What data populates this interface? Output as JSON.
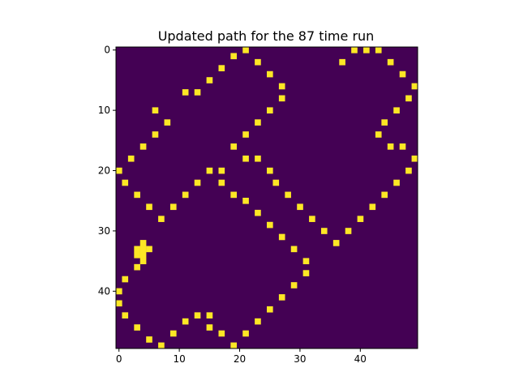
{
  "chart_data": {
    "type": "heatmap",
    "title": "Updated path for the 87 time run",
    "xlabel": "",
    "ylabel": "",
    "grid_size": 50,
    "colormap": "viridis",
    "colors": {
      "background": "#440154",
      "path": "#fde725"
    },
    "xlim": [
      -0.5,
      49.5
    ],
    "ylim": [
      49.5,
      -0.5
    ],
    "x_ticks": [
      0,
      10,
      20,
      30,
      40
    ],
    "y_ticks": [
      0,
      10,
      20,
      30,
      40
    ],
    "x_tick_labels": [
      "0",
      "10",
      "20",
      "30",
      "40"
    ],
    "y_tick_labels": [
      "0",
      "10",
      "20",
      "30",
      "40"
    ],
    "path_cells": [
      [
        21,
        0
      ],
      [
        39,
        0
      ],
      [
        41,
        0
      ],
      [
        43,
        0
      ],
      [
        19,
        1
      ],
      [
        23,
        2
      ],
      [
        37,
        2
      ],
      [
        45,
        2
      ],
      [
        17,
        3
      ],
      [
        25,
        4
      ],
      [
        47,
        4
      ],
      [
        15,
        5
      ],
      [
        27,
        6
      ],
      [
        49,
        6
      ],
      [
        11,
        7
      ],
      [
        13,
        7
      ],
      [
        27,
        8
      ],
      [
        48,
        8
      ],
      [
        6,
        10
      ],
      [
        25,
        10
      ],
      [
        46,
        10
      ],
      [
        8,
        12
      ],
      [
        23,
        12
      ],
      [
        44,
        12
      ],
      [
        6,
        14
      ],
      [
        21,
        14
      ],
      [
        43,
        14
      ],
      [
        4,
        16
      ],
      [
        19,
        16
      ],
      [
        45,
        16
      ],
      [
        47,
        16
      ],
      [
        2,
        18
      ],
      [
        21,
        18
      ],
      [
        23,
        18
      ],
      [
        49,
        18
      ],
      [
        0,
        20
      ],
      [
        15,
        20
      ],
      [
        17,
        20
      ],
      [
        25,
        20
      ],
      [
        48,
        20
      ],
      [
        1,
        22
      ],
      [
        13,
        22
      ],
      [
        17,
        22
      ],
      [
        26,
        22
      ],
      [
        46,
        22
      ],
      [
        3,
        24
      ],
      [
        11,
        24
      ],
      [
        19,
        24
      ],
      [
        28,
        24
      ],
      [
        44,
        24
      ],
      [
        21,
        25
      ],
      [
        5,
        26
      ],
      [
        9,
        26
      ],
      [
        30,
        26
      ],
      [
        42,
        26
      ],
      [
        23,
        27
      ],
      [
        7,
        28
      ],
      [
        32,
        28
      ],
      [
        40,
        28
      ],
      [
        25,
        29
      ],
      [
        34,
        30
      ],
      [
        38,
        30
      ],
      [
        27,
        31
      ],
      [
        36,
        32
      ],
      [
        4,
        32
      ],
      [
        3,
        33
      ],
      [
        4,
        33
      ],
      [
        5,
        33
      ],
      [
        29,
        33
      ],
      [
        3,
        34
      ],
      [
        4,
        34
      ],
      [
        4,
        35
      ],
      [
        31,
        35
      ],
      [
        3,
        36
      ],
      [
        31,
        37
      ],
      [
        1,
        38
      ],
      [
        29,
        39
      ],
      [
        0,
        40
      ],
      [
        27,
        41
      ],
      [
        0,
        42
      ],
      [
        25,
        43
      ],
      [
        1,
        44
      ],
      [
        13,
        44
      ],
      [
        15,
        44
      ],
      [
        11,
        45
      ],
      [
        23,
        45
      ],
      [
        3,
        46
      ],
      [
        15,
        46
      ],
      [
        9,
        47
      ],
      [
        17,
        47
      ],
      [
        21,
        47
      ],
      [
        5,
        48
      ],
      [
        7,
        49
      ],
      [
        19,
        49
      ]
    ]
  }
}
